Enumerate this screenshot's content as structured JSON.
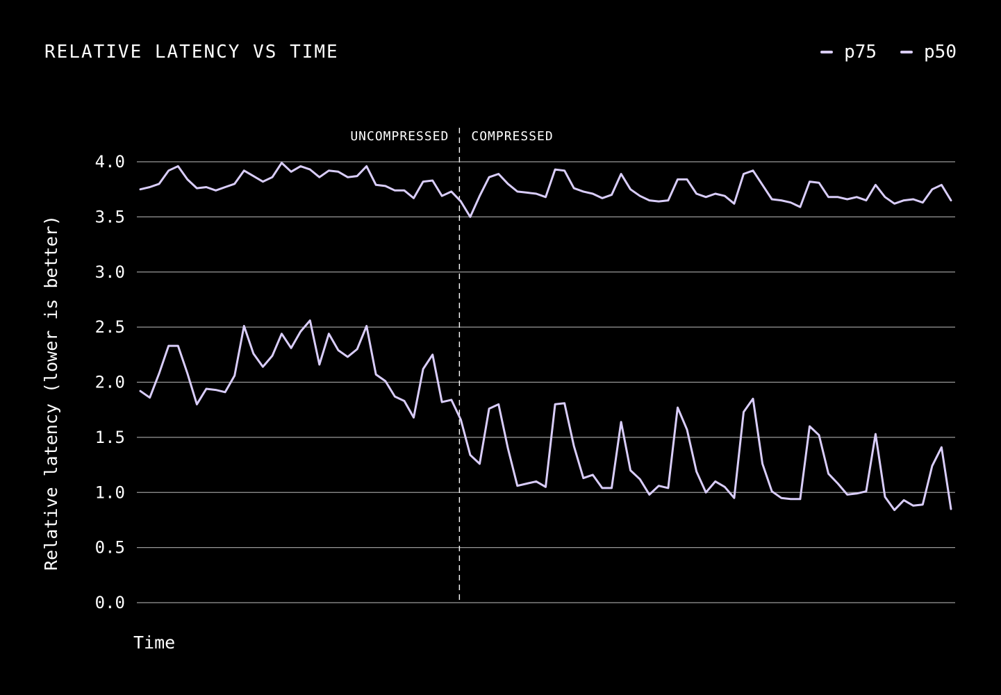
{
  "chart_data": {
    "type": "line",
    "title": "RELATIVE LATENCY VS TIME",
    "xlabel": "Time",
    "ylabel": "Relative latency (lower is better)",
    "ylim": [
      0,
      4
    ],
    "yticks": [
      "0.0",
      "0.5",
      "1.0",
      "1.5",
      "2.0",
      "2.5",
      "3.0",
      "3.5",
      "4.0"
    ],
    "grid": true,
    "legend_position": "top-right",
    "phases": {
      "before": "UNCOMPRESSED",
      "after": "COMPRESSED",
      "split_index": 34
    },
    "series": [
      {
        "name": "p75",
        "color": "#d9cdfa",
        "values": [
          3.75,
          3.77,
          3.8,
          3.92,
          3.96,
          3.84,
          3.76,
          3.77,
          3.74,
          3.77,
          3.8,
          3.92,
          3.87,
          3.82,
          3.86,
          3.99,
          3.91,
          3.96,
          3.93,
          3.86,
          3.92,
          3.91,
          3.86,
          3.87,
          3.96,
          3.79,
          3.78,
          3.74,
          3.74,
          3.67,
          3.82,
          3.83,
          3.69,
          3.73,
          3.64,
          3.5,
          3.69,
          3.86,
          3.89,
          3.8,
          3.73,
          3.72,
          3.71,
          3.68,
          3.93,
          3.92,
          3.76,
          3.73,
          3.71,
          3.67,
          3.7,
          3.89,
          3.75,
          3.69,
          3.65,
          3.64,
          3.65,
          3.84,
          3.84,
          3.71,
          3.68,
          3.71,
          3.69,
          3.62,
          3.89,
          3.92,
          3.79,
          3.66,
          3.65,
          3.63,
          3.59,
          3.82,
          3.81,
          3.68,
          3.68,
          3.66,
          3.68,
          3.65,
          3.79,
          3.68,
          3.62,
          3.65,
          3.66,
          3.63,
          3.75,
          3.79,
          3.65
        ]
      },
      {
        "name": "p50",
        "color": "#d9cdfa",
        "values": [
          1.92,
          1.86,
          2.08,
          2.33,
          2.33,
          2.08,
          1.8,
          1.94,
          1.93,
          1.91,
          2.06,
          2.51,
          2.26,
          2.14,
          2.24,
          2.44,
          2.31,
          2.46,
          2.56,
          2.16,
          2.44,
          2.29,
          2.23,
          2.3,
          2.51,
          2.07,
          2.01,
          1.87,
          1.83,
          1.68,
          2.12,
          2.25,
          1.82,
          1.84,
          1.66,
          1.34,
          1.26,
          1.76,
          1.8,
          1.4,
          1.06,
          1.08,
          1.1,
          1.05,
          1.8,
          1.81,
          1.42,
          1.13,
          1.16,
          1.04,
          1.04,
          1.64,
          1.2,
          1.12,
          0.98,
          1.06,
          1.04,
          1.77,
          1.57,
          1.19,
          1.0,
          1.1,
          1.05,
          0.95,
          1.73,
          1.85,
          1.26,
          1.01,
          0.95,
          0.94,
          0.94,
          1.6,
          1.52,
          1.17,
          1.08,
          0.98,
          0.99,
          1.01,
          1.53,
          0.96,
          0.84,
          0.93,
          0.88,
          0.89,
          1.24,
          1.41,
          0.85
        ]
      }
    ]
  }
}
